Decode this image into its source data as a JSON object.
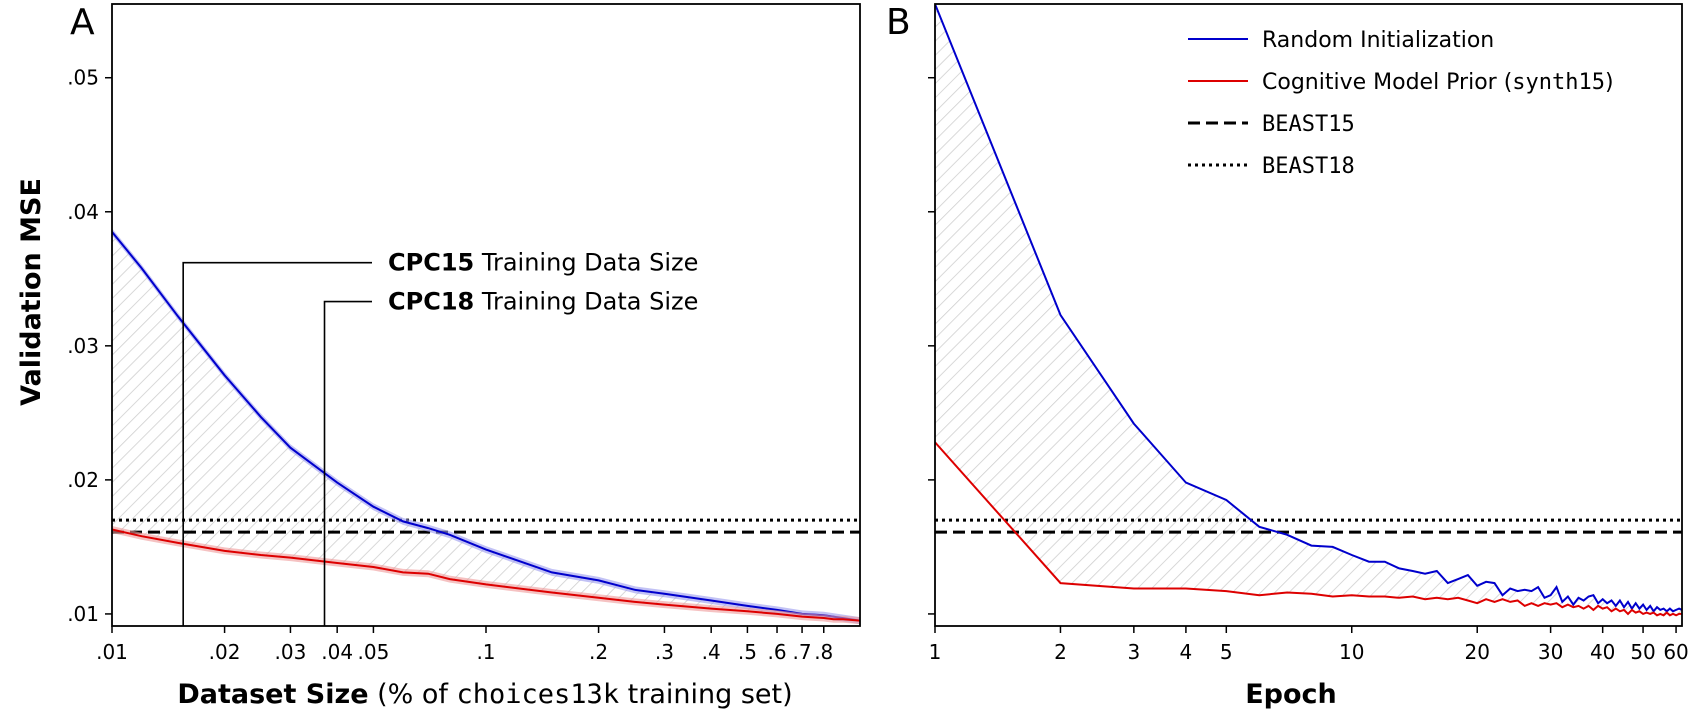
{
  "chart_data": [
    {
      "panel": "A",
      "type": "line",
      "xscale": "log",
      "xlim": [
        0.01,
        1.0
      ],
      "ylim": [
        0.0091,
        0.0555
      ],
      "ylabel": "Validation MSE",
      "xlabel_bold": "Dataset Size",
      "xlabel_pre": "(% of ",
      "xlabel_mono": "choices13k",
      "xlabel_post": " training set)",
      "xticks": [
        0.01,
        0.02,
        0.03,
        0.04,
        0.05,
        0.1,
        0.2,
        0.3,
        0.4,
        0.5,
        0.6,
        0.7,
        0.8
      ],
      "xtick_labels": [
        ".01",
        ".02",
        ".03",
        ".04",
        ".05",
        ".1",
        ".2",
        ".3",
        ".4",
        ".5",
        ".6",
        ".7",
        ".8"
      ],
      "yticks": [
        0.01,
        0.02,
        0.03,
        0.04,
        0.05
      ],
      "ytick_labels": [
        ".01",
        ".02",
        ".03",
        ".04",
        ".05"
      ],
      "series": [
        {
          "name": "Random Initialization",
          "color": "#0000cc",
          "band_color": "#9999ee",
          "x": [
            0.01,
            0.012,
            0.015,
            0.02,
            0.025,
            0.03,
            0.04,
            0.05,
            0.06,
            0.07,
            0.08,
            0.1,
            0.15,
            0.2,
            0.25,
            0.3,
            0.4,
            0.5,
            0.6,
            0.7,
            0.8,
            1.0
          ],
          "y": [
            0.0385,
            0.0358,
            0.0322,
            0.0278,
            0.0247,
            0.0224,
            0.0198,
            0.018,
            0.0169,
            0.0164,
            0.0159,
            0.0148,
            0.0131,
            0.0125,
            0.0118,
            0.0115,
            0.011,
            0.0106,
            0.0103,
            0.01,
            0.0099,
            0.0095
          ]
        },
        {
          "name": "Cognitive Model Prior (synth15)",
          "color": "#dd0000",
          "band_color": "#ee9999",
          "x": [
            0.01,
            0.012,
            0.015,
            0.02,
            0.025,
            0.03,
            0.04,
            0.05,
            0.06,
            0.07,
            0.08,
            0.1,
            0.15,
            0.2,
            0.25,
            0.3,
            0.4,
            0.5,
            0.6,
            0.7,
            0.8,
            0.85,
            0.9,
            1.0
          ],
          "y": [
            0.0163,
            0.0158,
            0.0153,
            0.0147,
            0.0144,
            0.0142,
            0.0138,
            0.0135,
            0.0131,
            0.013,
            0.0126,
            0.0122,
            0.0116,
            0.0112,
            0.0109,
            0.0107,
            0.0104,
            0.0102,
            0.01,
            0.0098,
            0.0097,
            0.0096,
            0.0096,
            0.0095
          ]
        }
      ],
      "hlines": [
        {
          "name": "BEAST15",
          "y": 0.0161,
          "style": "dashed"
        },
        {
          "name": "BEAST18",
          "y": 0.017,
          "style": "dotted"
        }
      ],
      "annotations": [
        {
          "bold": "CPC15",
          "text": " Training Data Size",
          "x": 0.0155,
          "y": 0.0362
        },
        {
          "bold": "CPC18",
          "text": " Training Data Size",
          "x": 0.037,
          "y": 0.0333
        }
      ]
    },
    {
      "panel": "B",
      "type": "line",
      "xscale": "log",
      "xlim": [
        1,
        62
      ],
      "ylim": [
        0.0091,
        0.0555
      ],
      "xlabel": "Epoch",
      "xticks": [
        1,
        2,
        3,
        4,
        5,
        10,
        20,
        30,
        40,
        50,
        60
      ],
      "xtick_labels": [
        "1",
        "2",
        "3",
        "4",
        "5",
        "10",
        "20",
        "30",
        "40",
        "50",
        "60"
      ],
      "yticks": [
        0.01,
        0.02,
        0.03,
        0.04,
        0.05
      ],
      "series": [
        {
          "name": "Random Initialization",
          "color": "#0000cc",
          "x": [
            1,
            2,
            3,
            4,
            5,
            6,
            7,
            8,
            9,
            10,
            11,
            12,
            13,
            14,
            15,
            16,
            17,
            18,
            19,
            20,
            21,
            22,
            23,
            24,
            25,
            26,
            27,
            28,
            29,
            30,
            31,
            32,
            33,
            34,
            35,
            36,
            37,
            38,
            39,
            40,
            41,
            42,
            43,
            44,
            45,
            46,
            47,
            48,
            49,
            50,
            51,
            52,
            53,
            54,
            55,
            56,
            57,
            58,
            59,
            60,
            61,
            62
          ],
          "y": [
            0.0555,
            0.0323,
            0.0242,
            0.0198,
            0.0185,
            0.0165,
            0.0159,
            0.0151,
            0.015,
            0.0144,
            0.0139,
            0.0139,
            0.0134,
            0.0132,
            0.013,
            0.0132,
            0.0123,
            0.0126,
            0.0129,
            0.0121,
            0.0124,
            0.0123,
            0.0114,
            0.0119,
            0.0117,
            0.0118,
            0.0117,
            0.012,
            0.0112,
            0.0114,
            0.012,
            0.0109,
            0.0113,
            0.0107,
            0.0112,
            0.011,
            0.0113,
            0.0114,
            0.0108,
            0.0111,
            0.0108,
            0.011,
            0.0106,
            0.011,
            0.0105,
            0.0109,
            0.0104,
            0.0108,
            0.0104,
            0.0107,
            0.0103,
            0.0106,
            0.0102,
            0.0105,
            0.0103,
            0.0104,
            0.0102,
            0.0104,
            0.0102,
            0.0103,
            0.0104,
            0.0103
          ]
        },
        {
          "name": "Cognitive Model Prior (synth15)",
          "color": "#dd0000",
          "x": [
            1,
            2,
            3,
            4,
            5,
            6,
            7,
            8,
            9,
            10,
            11,
            12,
            13,
            14,
            15,
            16,
            17,
            18,
            19,
            20,
            21,
            22,
            23,
            24,
            25,
            26,
            27,
            28,
            29,
            30,
            31,
            32,
            33,
            34,
            35,
            36,
            37,
            38,
            39,
            40,
            41,
            42,
            43,
            44,
            45,
            46,
            47,
            48,
            49,
            50,
            51,
            52,
            53,
            54,
            55,
            56,
            57,
            58,
            59,
            60,
            61,
            62
          ],
          "y": [
            0.0228,
            0.0123,
            0.0119,
            0.0119,
            0.0117,
            0.0114,
            0.0116,
            0.0115,
            0.0113,
            0.0114,
            0.0113,
            0.0113,
            0.0112,
            0.0113,
            0.0111,
            0.0112,
            0.0111,
            0.0112,
            0.011,
            0.0108,
            0.0111,
            0.0109,
            0.0111,
            0.0109,
            0.011,
            0.0106,
            0.0108,
            0.0106,
            0.0108,
            0.0107,
            0.0108,
            0.0105,
            0.0107,
            0.0105,
            0.0106,
            0.0104,
            0.0106,
            0.0103,
            0.0106,
            0.0104,
            0.0105,
            0.0102,
            0.0104,
            0.0102,
            0.0103,
            0.01,
            0.0103,
            0.0101,
            0.0102,
            0.01,
            0.0101,
            0.01,
            0.0101,
            0.0099,
            0.01,
            0.0099,
            0.0101,
            0.0099,
            0.01,
            0.0099,
            0.01,
            0.01
          ]
        }
      ],
      "hlines": [
        {
          "name": "BEAST15",
          "y": 0.0161,
          "style": "dashed"
        },
        {
          "name": "BEAST18",
          "y": 0.017,
          "style": "dotted"
        }
      ]
    }
  ],
  "legend": {
    "placement": "top-right",
    "entries": [
      {
        "label": "Random Initialization",
        "style": "solid",
        "color": "#0000cc"
      },
      {
        "label_pre": "Cognitive Model Prior (",
        "label_mono": "synth15",
        "label_post": ")",
        "style": "solid",
        "color": "#dd0000"
      },
      {
        "label_mono": "BEAST15",
        "style": "dashed",
        "color": "#000000"
      },
      {
        "label_mono": "BEAST18",
        "style": "dotted",
        "color": "#000000"
      }
    ]
  }
}
